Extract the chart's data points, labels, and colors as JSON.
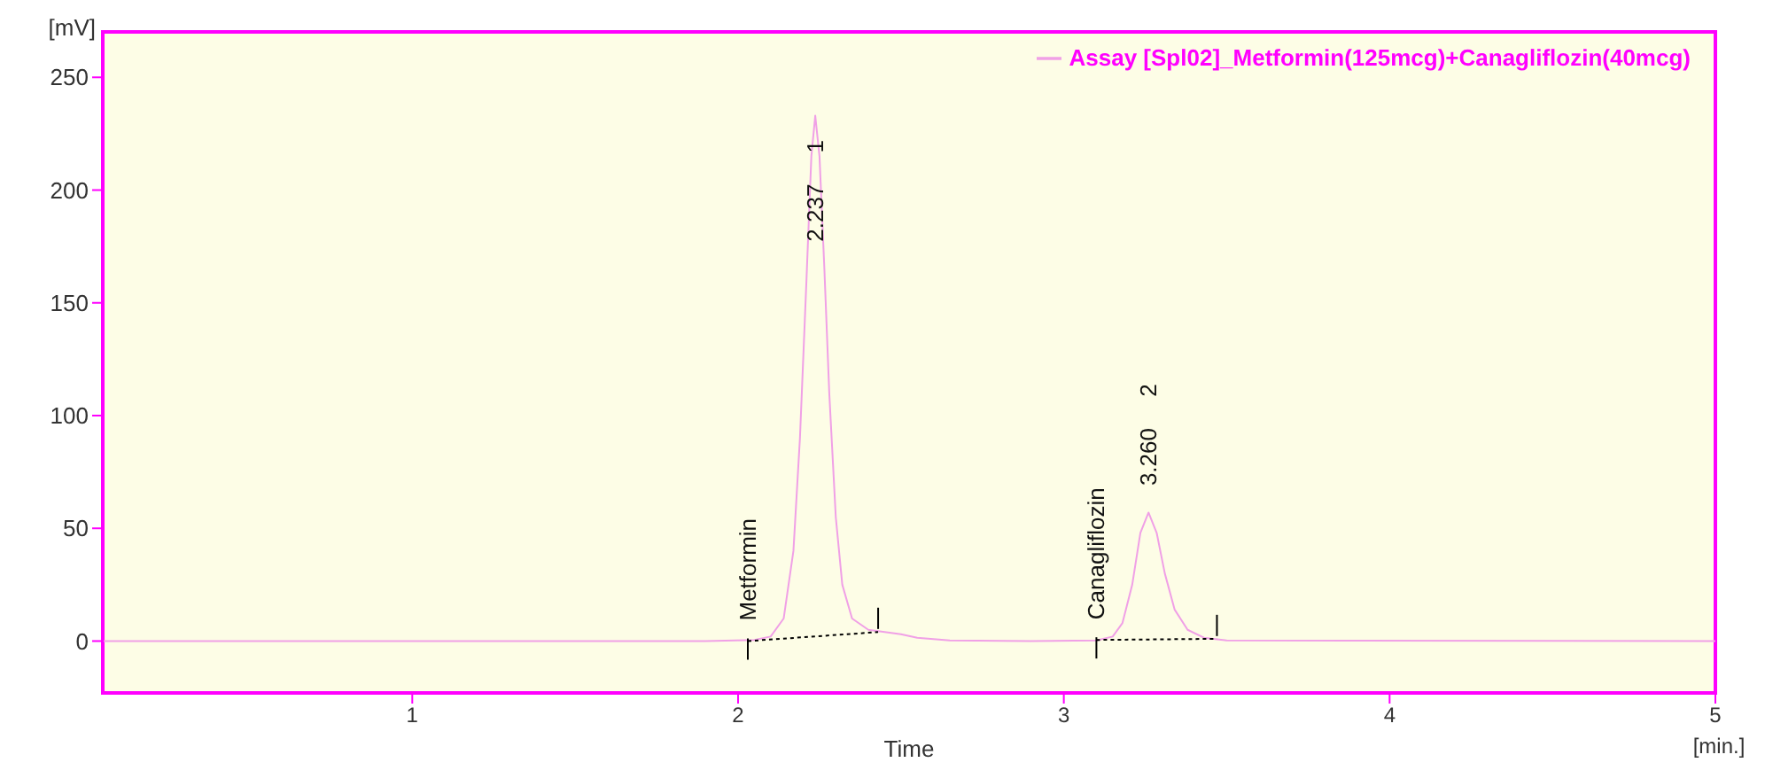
{
  "chart_data": {
    "type": "line",
    "xlabel": "Time",
    "ylabel": "[mV]",
    "xlim": [
      0.05,
      5
    ],
    "xticks": [
      1,
      2,
      3,
      4,
      5
    ],
    "ylim": [
      -23,
      256
    ],
    "yticks": [
      0,
      50,
      100,
      150,
      200,
      250
    ],
    "grid": false,
    "legend": "top right",
    "marker": "none",
    "series": [
      {
        "name": "Assay [Spl02]_Metformin(125mcg)+Canagliflozin(40mcg)",
        "color": "#f0a0e6",
        "line_style": "solid",
        "x": [
          0.05,
          1.9,
          2.05,
          2.1,
          2.14,
          2.17,
          2.19,
          2.21,
          2.225,
          2.237,
          2.25,
          2.265,
          2.28,
          2.3,
          2.32,
          2.35,
          2.4,
          2.45,
          2.5,
          2.55,
          2.65,
          2.9,
          3.1,
          3.15,
          3.18,
          3.21,
          3.235,
          3.26,
          3.285,
          3.31,
          3.34,
          3.38,
          3.43,
          3.5,
          5
        ],
        "values": [
          0,
          0,
          0.5,
          2,
          10,
          40,
          90,
          160,
          215,
          233,
          215,
          165,
          110,
          55,
          25,
          10,
          5,
          4,
          3,
          1.5,
          0.3,
          0,
          0.3,
          2,
          8,
          25,
          48,
          57,
          48,
          30,
          14,
          5,
          1.5,
          0.3,
          0
        ]
      },
      {
        "color": "#000000",
        "line_style": "dotted",
        "x": [
          2.03,
          2.43
        ],
        "values": [
          0,
          4
        ]
      },
      {
        "color": "#000000",
        "line_style": "dotted",
        "x": [
          3.1,
          3.47
        ],
        "values": [
          0.5,
          1
        ]
      }
    ],
    "annotations": [
      {
        "text": "Metformin",
        "x": 2.03,
        "y": 0
      },
      {
        "text": "2.237 1",
        "x": 2.237,
        "y": 160
      },
      {
        "text": "Canagliflozin",
        "x": 3.1,
        "y": 0.5
      },
      {
        "text": "3.260 2",
        "x": 3.26,
        "y": 57
      },
      "[min.]"
    ]
  }
}
